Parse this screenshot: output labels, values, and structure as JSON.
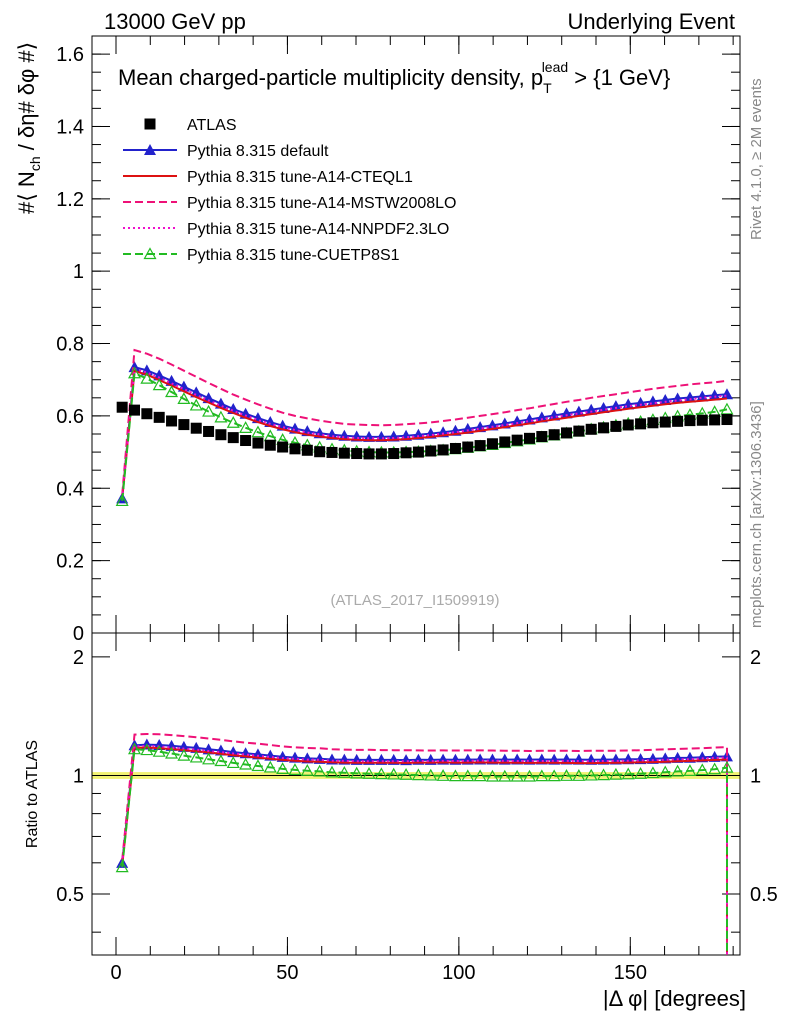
{
  "header": {
    "left_label": "13000 GeV pp",
    "right_label": "Underlying Event"
  },
  "side_text": {
    "rivet": "Rivet 4.1.0, ≥ 2M events",
    "mcplots": "mcplots.cern.ch [arXiv:1306.3436]"
  },
  "watermark": "(ATLAS_2017_I1509919)",
  "chart_data": [
    {
      "type": "line",
      "title_main": "Mean charged-particle multiplicity density, p",
      "title_sub": "T",
      "title_sup": "lead",
      "title_tail": " > {1 GeV}",
      "ylabel": "#⟨ N_ch / δη# δφ #⟩",
      "ylabel_main": "#⟨ N",
      "ylabel_sub": "ch",
      "ylabel_tail": " / δη# δφ #⟩",
      "xlim": [
        -7,
        182
      ],
      "ylim": [
        0,
        1.65
      ],
      "yticks": [
        0,
        0.2,
        0.4,
        0.6,
        0.8,
        1,
        1.2,
        1.4,
        1.6
      ],
      "ytick_labels": [
        "0",
        "0.2",
        "0.4",
        "0.6",
        "0.8",
        "1",
        "1.2",
        "1.4",
        "1.6"
      ],
      "x": [
        1.8,
        5.4,
        9.0,
        12.6,
        16.2,
        19.8,
        23.4,
        27.0,
        30.6,
        34.2,
        37.8,
        41.4,
        45.0,
        48.6,
        52.2,
        55.8,
        59.4,
        63.0,
        66.6,
        70.2,
        73.8,
        77.4,
        81.0,
        84.6,
        88.2,
        91.8,
        95.4,
        99.0,
        102.6,
        106.2,
        109.8,
        113.4,
        117.0,
        120.6,
        124.2,
        127.8,
        131.4,
        135.0,
        138.6,
        142.2,
        145.8,
        149.4,
        153.0,
        156.6,
        160.2,
        163.8,
        167.4,
        171.0,
        174.6,
        178.2
      ],
      "series": [
        {
          "name": "ATLAS",
          "color": "#000000",
          "marker": "square",
          "line": "none",
          "values": [
            0.624,
            0.616,
            0.606,
            0.596,
            0.586,
            0.576,
            0.566,
            0.557,
            0.548,
            0.54,
            0.532,
            0.525,
            0.519,
            0.514,
            0.509,
            0.505,
            0.501,
            0.499,
            0.497,
            0.496,
            0.495,
            0.495,
            0.496,
            0.498,
            0.5,
            0.503,
            0.506,
            0.51,
            0.514,
            0.518,
            0.523,
            0.528,
            0.533,
            0.538,
            0.543,
            0.548,
            0.553,
            0.558,
            0.563,
            0.567,
            0.571,
            0.575,
            0.578,
            0.581,
            0.583,
            0.585,
            0.587,
            0.588,
            0.589,
            0.59
          ]
        },
        {
          "name": "Pythia 8.315 default",
          "color": "#2222cc",
          "marker": "triangle",
          "line": "solid",
          "values": [
            0.372,
            0.735,
            0.726,
            0.712,
            0.697,
            0.681,
            0.665,
            0.649,
            0.634,
            0.619,
            0.606,
            0.594,
            0.583,
            0.573,
            0.565,
            0.558,
            0.552,
            0.548,
            0.545,
            0.543,
            0.542,
            0.542,
            0.543,
            0.545,
            0.548,
            0.551,
            0.555,
            0.559,
            0.564,
            0.569,
            0.574,
            0.579,
            0.585,
            0.59,
            0.596,
            0.601,
            0.607,
            0.612,
            0.617,
            0.622,
            0.627,
            0.632,
            0.636,
            0.64,
            0.644,
            0.648,
            0.651,
            0.654,
            0.657,
            0.66
          ]
        },
        {
          "name": "Pythia 8.315 tune-A14-CTEQL1",
          "color": "#dd1111",
          "marker": "none",
          "line": "solid",
          "values": [
            0.371,
            0.724,
            0.714,
            0.699,
            0.684,
            0.668,
            0.652,
            0.637,
            0.622,
            0.608,
            0.595,
            0.583,
            0.572,
            0.563,
            0.555,
            0.548,
            0.543,
            0.539,
            0.536,
            0.534,
            0.533,
            0.533,
            0.534,
            0.536,
            0.539,
            0.542,
            0.546,
            0.55,
            0.554,
            0.559,
            0.564,
            0.569,
            0.574,
            0.579,
            0.585,
            0.59,
            0.595,
            0.6,
            0.605,
            0.61,
            0.615,
            0.62,
            0.624,
            0.628,
            0.632,
            0.636,
            0.639,
            0.642,
            0.645,
            0.648
          ]
        },
        {
          "name": "Pythia 8.315 tune-A14-MSTW2008LO",
          "color": "#ee1177",
          "marker": "none",
          "line": "dashed",
          "values": [
            0.382,
            0.782,
            0.772,
            0.758,
            0.742,
            0.725,
            0.708,
            0.691,
            0.675,
            0.659,
            0.645,
            0.632,
            0.62,
            0.609,
            0.6,
            0.593,
            0.587,
            0.582,
            0.578,
            0.576,
            0.575,
            0.574,
            0.575,
            0.577,
            0.579,
            0.582,
            0.586,
            0.59,
            0.595,
            0.6,
            0.605,
            0.61,
            0.616,
            0.621,
            0.627,
            0.633,
            0.639,
            0.644,
            0.65,
            0.655,
            0.66,
            0.665,
            0.67,
            0.675,
            0.679,
            0.683,
            0.687,
            0.69,
            0.693,
            0.697
          ]
        },
        {
          "name": "Pythia 8.315 tune-A14-NNPDF2.3LO",
          "color": "#ee11cc",
          "marker": "none",
          "line": "dotted",
          "values": [
            0.372,
            0.73,
            0.72,
            0.706,
            0.69,
            0.674,
            0.658,
            0.643,
            0.628,
            0.614,
            0.601,
            0.589,
            0.578,
            0.569,
            0.561,
            0.554,
            0.549,
            0.544,
            0.541,
            0.539,
            0.538,
            0.538,
            0.539,
            0.541,
            0.544,
            0.547,
            0.551,
            0.555,
            0.56,
            0.565,
            0.57,
            0.575,
            0.58,
            0.586,
            0.591,
            0.597,
            0.602,
            0.607,
            0.612,
            0.617,
            0.622,
            0.627,
            0.631,
            0.635,
            0.639,
            0.643,
            0.646,
            0.65,
            0.653,
            0.656
          ]
        },
        {
          "name": "Pythia 8.315 tune-CUETP8S1",
          "color": "#22bb22",
          "marker": "open-triangle",
          "line": "dashed",
          "values": [
            0.365,
            0.718,
            0.703,
            0.685,
            0.666,
            0.647,
            0.629,
            0.612,
            0.596,
            0.581,
            0.567,
            0.555,
            0.544,
            0.534,
            0.526,
            0.519,
            0.513,
            0.508,
            0.505,
            0.502,
            0.5,
            0.499,
            0.499,
            0.5,
            0.501,
            0.503,
            0.505,
            0.508,
            0.512,
            0.516,
            0.52,
            0.525,
            0.53,
            0.535,
            0.541,
            0.546,
            0.552,
            0.557,
            0.563,
            0.568,
            0.574,
            0.579,
            0.584,
            0.589,
            0.594,
            0.599,
            0.603,
            0.607,
            0.611,
            0.618
          ]
        }
      ]
    },
    {
      "type": "line",
      "title": "",
      "xlabel": "|Δ φ| [degrees]",
      "ylabel": "Ratio to ATLAS",
      "xlim": [
        -7,
        182
      ],
      "ylim": [
        0.35,
        2.3
      ],
      "yticks": [
        0.5,
        1,
        2
      ],
      "ytick_labels": [
        "0.5",
        "1",
        "2"
      ],
      "xticks": [
        0,
        50,
        100,
        150
      ],
      "xtick_labels": [
        "0",
        "50",
        "100",
        "150"
      ],
      "reference_line": 1.0,
      "reference_band": [
        0.98,
        1.02
      ],
      "right_edge_drop_to": 0.35,
      "ratio_series": [
        {
          "name": "Pythia 8.315 default",
          "values": [
            0.6,
            1.193,
            1.198,
            1.195,
            1.189,
            1.182,
            1.175,
            1.165,
            1.157,
            1.146,
            1.139,
            1.131,
            1.123,
            1.115,
            1.11,
            1.105,
            1.102,
            1.098,
            1.097,
            1.095,
            1.095,
            1.095,
            1.095,
            1.094,
            1.096,
            1.095,
            1.097,
            1.096,
            1.097,
            1.098,
            1.098,
            1.097,
            1.098,
            1.097,
            1.098,
            1.097,
            1.098,
            1.097,
            1.096,
            1.097,
            1.098,
            1.099,
            1.1,
            1.102,
            1.105,
            1.108,
            1.109,
            1.112,
            1.115,
            1.118
          ]
        },
        {
          "name": "Pythia 8.315 tune-A14-CTEQL1",
          "values": [
            0.59,
            1.175,
            1.178,
            1.173,
            1.167,
            1.16,
            1.152,
            1.144,
            1.135,
            1.126,
            1.118,
            1.11,
            1.102,
            1.095,
            1.09,
            1.085,
            1.084,
            1.08,
            1.078,
            1.077,
            1.077,
            1.077,
            1.077,
            1.076,
            1.078,
            1.078,
            1.079,
            1.078,
            1.078,
            1.079,
            1.078,
            1.078,
            1.077,
            1.076,
            1.077,
            1.077,
            1.076,
            1.075,
            1.075,
            1.076,
            1.077,
            1.078,
            1.08,
            1.081,
            1.084,
            1.087,
            1.089,
            1.092,
            1.095,
            1.098
          ]
        },
        {
          "name": "Pythia 8.315 tune-A14-MSTW2008LO",
          "values": [
            0.61,
            1.27,
            1.274,
            1.272,
            1.266,
            1.259,
            1.251,
            1.241,
            1.232,
            1.22,
            1.212,
            1.204,
            1.195,
            1.185,
            1.179,
            1.174,
            1.172,
            1.166,
            1.163,
            1.161,
            1.162,
            1.16,
            1.159,
            1.159,
            1.158,
            1.157,
            1.158,
            1.157,
            1.158,
            1.158,
            1.157,
            1.155,
            1.156,
            1.154,
            1.155,
            1.155,
            1.156,
            1.154,
            1.155,
            1.155,
            1.156,
            1.157,
            1.159,
            1.162,
            1.165,
            1.168,
            1.17,
            1.173,
            1.177,
            1.18
          ]
        },
        {
          "name": "Pythia 8.315 tune-A14-NNPDF2.3LO",
          "values": [
            0.6,
            1.185,
            1.188,
            1.185,
            1.177,
            1.17,
            1.163,
            1.154,
            1.146,
            1.137,
            1.13,
            1.122,
            1.114,
            1.107,
            1.102,
            1.097,
            1.096,
            1.09,
            1.089,
            1.087,
            1.087,
            1.087,
            1.087,
            1.086,
            1.088,
            1.087,
            1.089,
            1.088,
            1.089,
            1.091,
            1.09,
            1.089,
            1.088,
            1.089,
            1.088,
            1.089,
            1.089,
            1.088,
            1.087,
            1.088,
            1.089,
            1.09,
            1.092,
            1.093,
            1.096,
            1.099,
            1.1,
            1.105,
            1.108,
            1.11
          ]
        },
        {
          "name": "Pythia 8.315 tune-CUETP8S1",
          "values": [
            0.585,
            1.166,
            1.16,
            1.149,
            1.137,
            1.123,
            1.111,
            1.099,
            1.088,
            1.076,
            1.066,
            1.057,
            1.048,
            1.039,
            1.033,
            1.028,
            1.024,
            1.018,
            1.016,
            1.012,
            1.01,
            1.008,
            1.006,
            1.004,
            1.002,
            1.0,
            0.998,
            0.996,
            0.996,
            0.996,
            0.994,
            0.994,
            0.994,
            0.994,
            0.996,
            0.996,
            0.998,
            0.998,
            1.0,
            1.002,
            1.005,
            1.007,
            1.01,
            1.014,
            1.019,
            1.024,
            1.027,
            1.032,
            1.037,
            1.047
          ]
        }
      ]
    }
  ]
}
